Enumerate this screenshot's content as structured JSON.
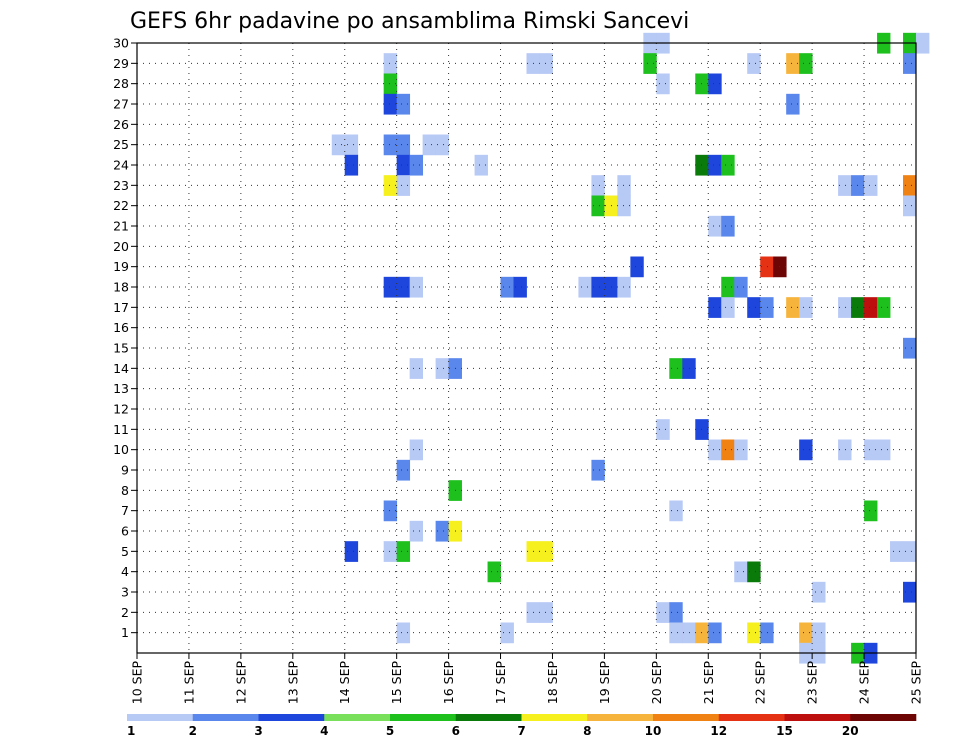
{
  "chart_data": {
    "type": "heatmap",
    "title": "GEFS 6hr padavine po ansamblima Rimski Sancevi",
    "x_tick_labels": [
      "10 SEP",
      "11 SEP",
      "12 SEP",
      "13 SEP",
      "14 SEP",
      "15 SEP",
      "16 SEP",
      "17 SEP",
      "18 SEP",
      "19 SEP",
      "20 SEP",
      "21 SEP",
      "22 SEP",
      "23 SEP",
      "24 SEP",
      "25 SEP"
    ],
    "x_range_days": [
      10,
      25
    ],
    "y_tick_labels": [
      "1",
      "2",
      "3",
      "4",
      "5",
      "6",
      "7",
      "8",
      "9",
      "10",
      "11",
      "12",
      "13",
      "14",
      "15",
      "16",
      "17",
      "18",
      "19",
      "20",
      "21",
      "22",
      "23",
      "24",
      "25",
      "26",
      "27",
      "28",
      "29",
      "30"
    ],
    "y_range": [
      0,
      30
    ],
    "grid": true,
    "legend": {
      "placement": "bottom",
      "labels": [
        "1",
        "2",
        "3",
        "4",
        "5",
        "6",
        "7",
        "8",
        "10",
        "12",
        "15",
        "20"
      ],
      "colors": [
        "#b7c9f5",
        "#5a87ec",
        "#1e46dc",
        "#78e05a",
        "#1ec01e",
        "#0a7a0a",
        "#f5f01e",
        "#f7b43c",
        "#f08214",
        "#e63214",
        "#be0f0f",
        "#6e0505"
      ]
    },
    "cells_note": "each cell: [ensemble_member, day_of_month_start, precip_bin_index 0-11]",
    "cells": [
      [
        30,
        19.75,
        0
      ],
      [
        30,
        20.0,
        0
      ],
      [
        30,
        24.25,
        4
      ],
      [
        30,
        24.75,
        4
      ],
      [
        30,
        25.0,
        0
      ],
      [
        29,
        14.75,
        0
      ],
      [
        29,
        17.5,
        0
      ],
      [
        29,
        17.75,
        0
      ],
      [
        29,
        19.75,
        4
      ],
      [
        29,
        21.75,
        0
      ],
      [
        29,
        22.5,
        7
      ],
      [
        29,
        22.75,
        4
      ],
      [
        29,
        24.75,
        1
      ],
      [
        28,
        14.75,
        4
      ],
      [
        28,
        20.0,
        0
      ],
      [
        28,
        20.75,
        4
      ],
      [
        28,
        21.0,
        2
      ],
      [
        27,
        14.75,
        2
      ],
      [
        27,
        15.0,
        1
      ],
      [
        27,
        22.5,
        1
      ],
      [
        25,
        13.75,
        0
      ],
      [
        25,
        14.0,
        0
      ],
      [
        25,
        14.75,
        1
      ],
      [
        25,
        15.0,
        1
      ],
      [
        25,
        15.5,
        0
      ],
      [
        25,
        15.75,
        0
      ],
      [
        24,
        14.0,
        2
      ],
      [
        24,
        15.0,
        2
      ],
      [
        24,
        15.25,
        1
      ],
      [
        24,
        16.5,
        0
      ],
      [
        24,
        20.75,
        5
      ],
      [
        24,
        21.0,
        2
      ],
      [
        24,
        21.25,
        4
      ],
      [
        23,
        14.75,
        6
      ],
      [
        23,
        15.0,
        0
      ],
      [
        23,
        18.75,
        0
      ],
      [
        23,
        19.25,
        0
      ],
      [
        23,
        23.5,
        0
      ],
      [
        23,
        23.75,
        1
      ],
      [
        23,
        24.0,
        0
      ],
      [
        23,
        24.75,
        8
      ],
      [
        22,
        18.75,
        4
      ],
      [
        22,
        19.0,
        6
      ],
      [
        22,
        19.25,
        0
      ],
      [
        22,
        24.75,
        0
      ],
      [
        21,
        21.0,
        0
      ],
      [
        21,
        21.25,
        1
      ],
      [
        19,
        19.5,
        2
      ],
      [
        19,
        22.0,
        9
      ],
      [
        19,
        22.25,
        11
      ],
      [
        18,
        14.75,
        2
      ],
      [
        18,
        15.0,
        2
      ],
      [
        18,
        15.25,
        0
      ],
      [
        18,
        17.0,
        1
      ],
      [
        18,
        17.25,
        2
      ],
      [
        18,
        18.5,
        0
      ],
      [
        18,
        18.75,
        2
      ],
      [
        18,
        19.0,
        2
      ],
      [
        18,
        19.25,
        0
      ],
      [
        18,
        21.25,
        4
      ],
      [
        18,
        21.5,
        1
      ],
      [
        17,
        21.0,
        2
      ],
      [
        17,
        21.25,
        0
      ],
      [
        17,
        21.75,
        2
      ],
      [
        17,
        22.0,
        1
      ],
      [
        17,
        22.5,
        7
      ],
      [
        17,
        22.75,
        0
      ],
      [
        17,
        23.5,
        0
      ],
      [
        17,
        23.75,
        5
      ],
      [
        17,
        24.0,
        10
      ],
      [
        17,
        24.25,
        4
      ],
      [
        15,
        24.75,
        1
      ],
      [
        14,
        15.25,
        0
      ],
      [
        14,
        15.75,
        0
      ],
      [
        14,
        16.0,
        1
      ],
      [
        14,
        20.25,
        4
      ],
      [
        14,
        20.5,
        2
      ],
      [
        11,
        20.0,
        0
      ],
      [
        11,
        20.75,
        2
      ],
      [
        10,
        15.25,
        0
      ],
      [
        10,
        21.0,
        0
      ],
      [
        10,
        21.25,
        8
      ],
      [
        10,
        21.5,
        0
      ],
      [
        10,
        22.75,
        2
      ],
      [
        10,
        23.5,
        0
      ],
      [
        10,
        24.0,
        0
      ],
      [
        10,
        24.25,
        0
      ],
      [
        9,
        15.0,
        1
      ],
      [
        9,
        18.75,
        1
      ],
      [
        8,
        16.0,
        4
      ],
      [
        7,
        14.75,
        1
      ],
      [
        7,
        20.25,
        0
      ],
      [
        7,
        24.0,
        4
      ],
      [
        6,
        15.25,
        0
      ],
      [
        6,
        15.75,
        1
      ],
      [
        6,
        16.0,
        6
      ],
      [
        5,
        14.0,
        2
      ],
      [
        5,
        14.75,
        0
      ],
      [
        5,
        15.0,
        4
      ],
      [
        5,
        17.5,
        6
      ],
      [
        5,
        17.75,
        6
      ],
      [
        5,
        24.5,
        0
      ],
      [
        5,
        24.75,
        0
      ],
      [
        4,
        16.75,
        4
      ],
      [
        4,
        21.5,
        0
      ],
      [
        4,
        21.75,
        5
      ],
      [
        3,
        23.0,
        0
      ],
      [
        3,
        24.75,
        2
      ],
      [
        2,
        17.5,
        0
      ],
      [
        2,
        17.75,
        0
      ],
      [
        2,
        20.0,
        0
      ],
      [
        2,
        20.25,
        1
      ],
      [
        1,
        15.0,
        0
      ],
      [
        1,
        17.0,
        0
      ],
      [
        1,
        20.25,
        0
      ],
      [
        1,
        20.5,
        0
      ],
      [
        1,
        20.75,
        7
      ],
      [
        1,
        21.0,
        1
      ],
      [
        1,
        21.75,
        6
      ],
      [
        1,
        22.0,
        1
      ],
      [
        1,
        22.75,
        7
      ],
      [
        1,
        23.0,
        0
      ],
      [
        0,
        22.75,
        0
      ],
      [
        0,
        23.0,
        0
      ],
      [
        0,
        23.75,
        4
      ],
      [
        0,
        24.0,
        2
      ]
    ]
  }
}
